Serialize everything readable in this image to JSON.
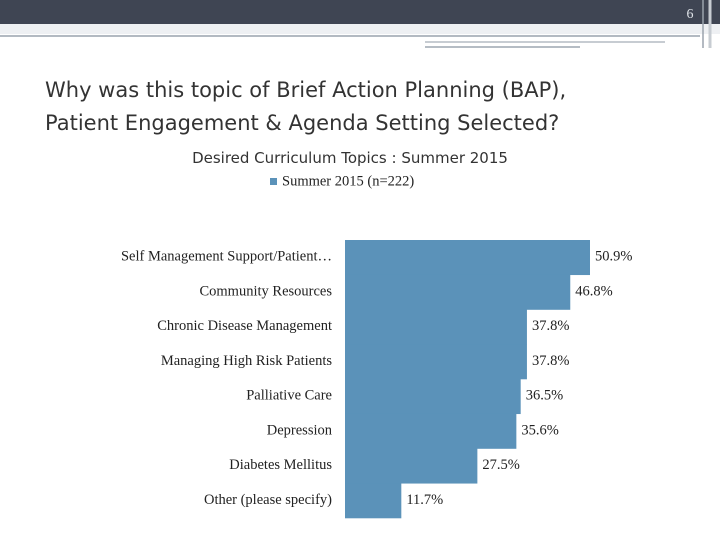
{
  "slide_number": "6",
  "heading": [
    "Why was this topic of Brief Action Planning (BAP),",
    "Patient Engagement & Agenda Setting Selected?"
  ],
  "chart_data": {
    "type": "bar",
    "orientation": "horizontal",
    "title": "Desired Curriculum Topics : Summer 2015",
    "categories": [
      "Self Management Support/Patient…",
      "Community Resources",
      "Chronic Disease Management",
      "Managing High Risk Patients",
      "Palliative Care",
      "Depression",
      "Diabetes Mellitus",
      "Other (please specify)"
    ],
    "series": [
      {
        "name": "Summer 2015 (n=222)",
        "color": "#5b92b9",
        "values": [
          50.9,
          46.8,
          37.8,
          37.8,
          36.5,
          35.6,
          27.5,
          11.7
        ],
        "value_labels": [
          "50.9%",
          "46.8%",
          "37.8%",
          "37.8%",
          "36.5%",
          "35.6%",
          "27.5%",
          "11.7%"
        ]
      }
    ]
  }
}
